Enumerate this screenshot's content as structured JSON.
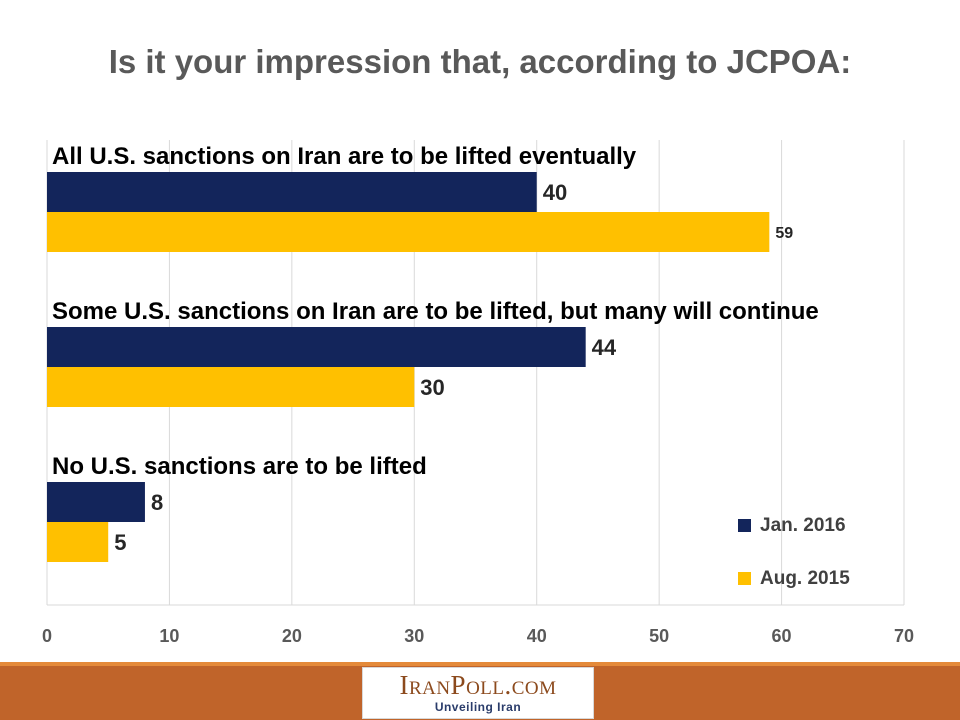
{
  "chart_data": {
    "type": "bar",
    "orientation": "horizontal",
    "title": "Is it your impression that, according to JCPOA:",
    "categories": [
      "All U.S. sanctions on Iran are to be lifted eventually",
      "Some U.S. sanctions on Iran are to be lifted, but many will continue",
      "No U.S. sanctions are to be lifted"
    ],
    "series": [
      {
        "name": "Jan. 2016",
        "values": [
          40,
          44,
          8
        ],
        "color": "#13255b"
      },
      {
        "name": "Aug. 2015",
        "values": [
          59,
          30,
          5
        ],
        "color": "#ffc000"
      }
    ],
    "data_labels": [
      [
        "40",
        "44",
        "8"
      ],
      [
        "59",
        "30",
        "5"
      ]
    ],
    "xlim": [
      0,
      70
    ],
    "xticks": [
      0,
      10,
      20,
      30,
      40,
      50,
      60,
      70
    ],
    "grid": true,
    "legend_position": "bottom-right"
  },
  "footer": {
    "logo_text": "IranPoll.com",
    "tagline": "Unveiling Iran",
    "colors": {
      "band": "#c0642a",
      "stripe": "#e48a3a"
    }
  }
}
